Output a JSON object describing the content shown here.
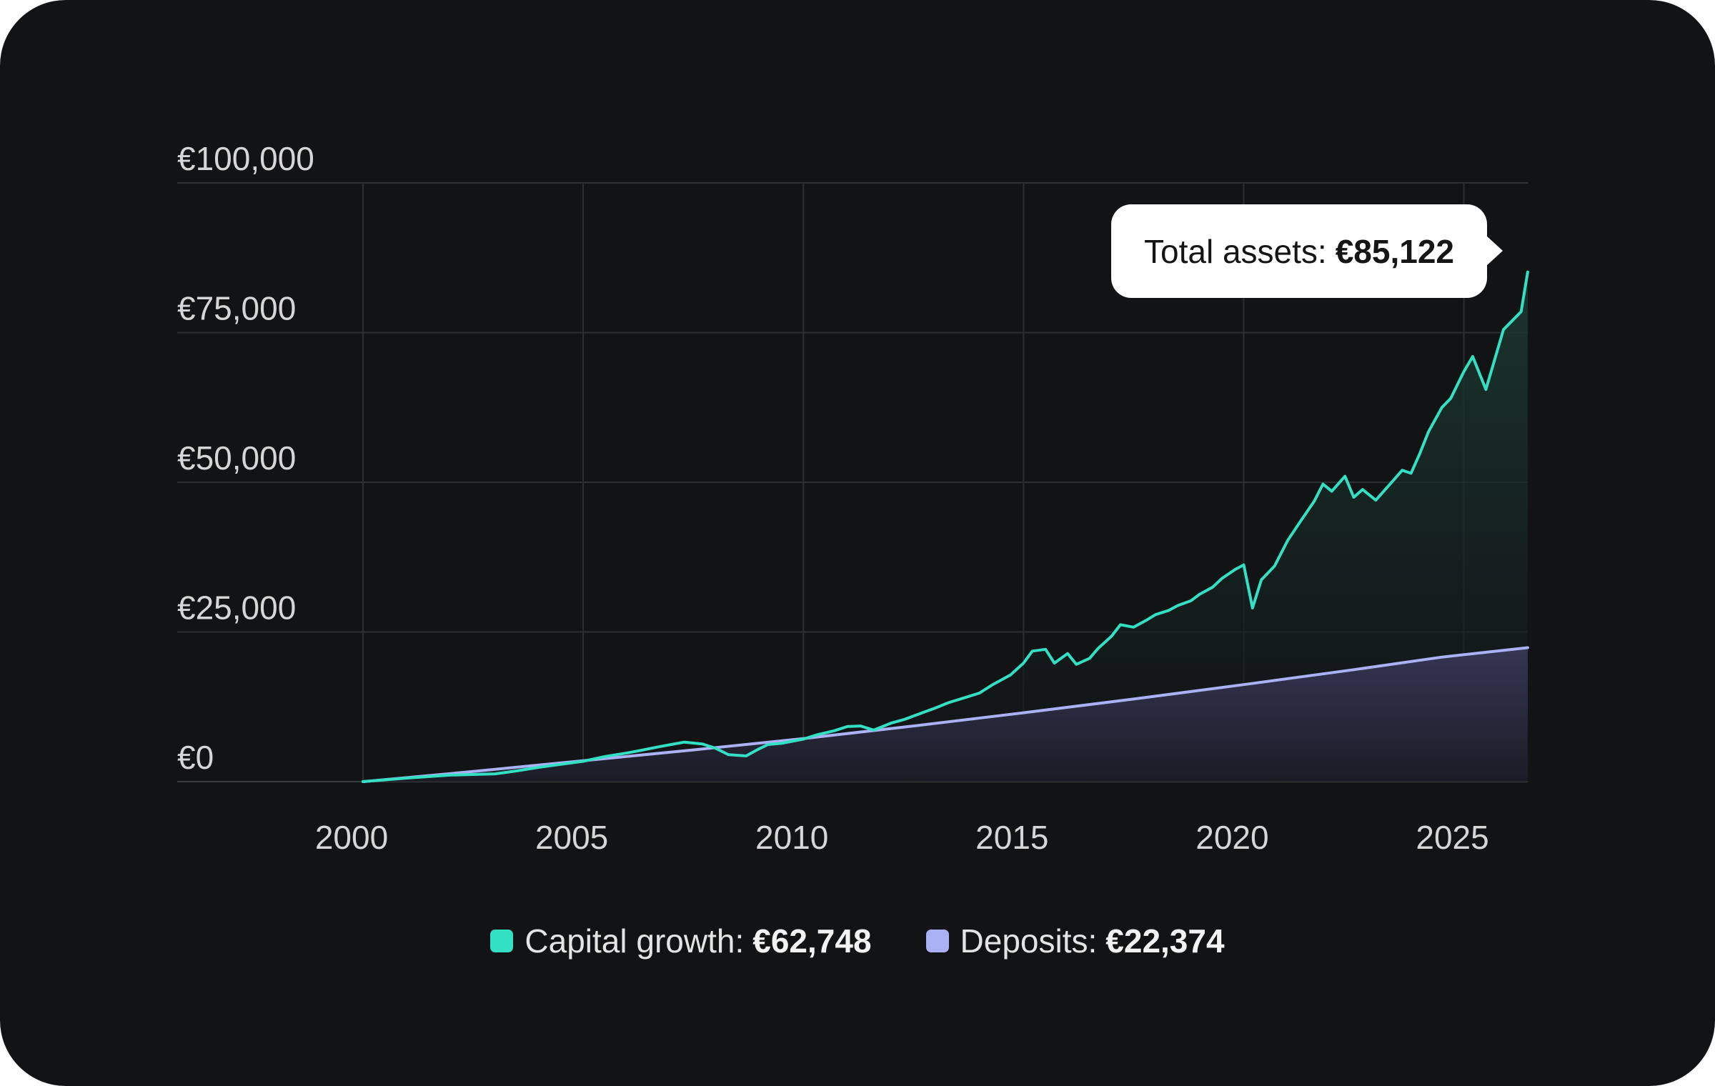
{
  "colors": {
    "background": "#111315",
    "capital_growth": "#34e0c4",
    "deposits": "#aab2f5",
    "grid": "#2c2f33",
    "tooltip_bg": "#ffffff",
    "text": "#d6d6d6"
  },
  "tooltip": {
    "label": "Total assets:",
    "value": "€85,122"
  },
  "legend": {
    "items": [
      {
        "label": "Capital growth:",
        "value": "€62,748",
        "color": "#34e0c4"
      },
      {
        "label": "Deposits:",
        "value": "€22,374",
        "color": "#aab2f5"
      }
    ]
  },
  "chart_data": {
    "type": "area",
    "title": "",
    "xlabel": "",
    "ylabel": "",
    "xlim": [
      2000,
      2026.5
    ],
    "ylim": [
      0,
      100000
    ],
    "grid": true,
    "legend_position": "bottom",
    "x_ticks": [
      {
        "value": 2000,
        "label": "2000"
      },
      {
        "value": 2005,
        "label": "2005"
      },
      {
        "value": 2010,
        "label": "2010"
      },
      {
        "value": 2015,
        "label": "2015"
      },
      {
        "value": 2020,
        "label": "2020"
      },
      {
        "value": 2025,
        "label": "2025"
      }
    ],
    "y_ticks": [
      {
        "value": 0,
        "label": "€0"
      },
      {
        "value": 25000,
        "label": "€25,000"
      },
      {
        "value": 50000,
        "label": "€50,000"
      },
      {
        "value": 75000,
        "label": "€75,000"
      },
      {
        "value": 100000,
        "label": "€100,000"
      }
    ],
    "series": [
      {
        "name": "Total assets",
        "color": "#34e0c4",
        "x": [
          2000.0,
          2001.0,
          2002.0,
          2003.0,
          2003.5,
          2004.0,
          2005.0,
          2005.5,
          2006.0,
          2006.3,
          2006.7,
          2007.0,
          2007.3,
          2007.7,
          2008.0,
          2008.3,
          2008.7,
          2009.0,
          2009.2,
          2009.5,
          2010.0,
          2010.3,
          2010.7,
          2011.0,
          2011.3,
          2011.6,
          2012.0,
          2012.3,
          2012.7,
          2013.0,
          2013.3,
          2013.7,
          2014.0,
          2014.3,
          2014.7,
          2015.0,
          2015.2,
          2015.5,
          2015.7,
          2016.0,
          2016.2,
          2016.5,
          2016.7,
          2017.0,
          2017.2,
          2017.5,
          2017.8,
          2018.0,
          2018.3,
          2018.5,
          2018.8,
          2019.0,
          2019.3,
          2019.5,
          2019.8,
          2020.0,
          2020.2,
          2020.4,
          2020.7,
          2021.0,
          2021.3,
          2021.6,
          2021.8,
          2022.0,
          2022.3,
          2022.5,
          2022.7,
          2023.0,
          2023.3,
          2023.6,
          2023.8,
          2024.0,
          2024.2,
          2024.5,
          2024.7,
          2025.0,
          2025.2,
          2025.5,
          2025.7,
          2025.9,
          2026.1,
          2026.3,
          2026.45
        ],
        "y": [
          0,
          600,
          1100,
          1300,
          1800,
          2400,
          3400,
          4200,
          4800,
          5200,
          5800,
          6200,
          6600,
          6300,
          5600,
          4500,
          4300,
          5500,
          6200,
          6400,
          7100,
          7800,
          8500,
          9200,
          9300,
          8600,
          9800,
          10400,
          11500,
          12300,
          13200,
          14100,
          14800,
          16200,
          17800,
          19800,
          21800,
          22100,
          19800,
          21400,
          19600,
          20600,
          22300,
          24300,
          26200,
          25800,
          27000,
          27900,
          28600,
          29400,
          30200,
          31300,
          32500,
          33900,
          35400,
          36200,
          29000,
          33700,
          36000,
          40300,
          43600,
          46800,
          49700,
          48500,
          51000,
          47500,
          48800,
          47000,
          49500,
          52000,
          51500,
          54800,
          58500,
          62500,
          64000,
          68500,
          71000,
          65500,
          70500,
          75500,
          77000,
          78500,
          85122
        ]
      },
      {
        "name": "Deposits",
        "color": "#aab2f5",
        "x": [
          2000.0,
          2002.5,
          2005.0,
          2007.5,
          2010.0,
          2012.5,
          2015.0,
          2017.5,
          2020.0,
          2022.5,
          2024.5,
          2026.45
        ],
        "y": [
          0,
          1700,
          3500,
          5300,
          7200,
          9300,
          11500,
          13800,
          16200,
          18700,
          20800,
          22374
        ]
      }
    ]
  }
}
